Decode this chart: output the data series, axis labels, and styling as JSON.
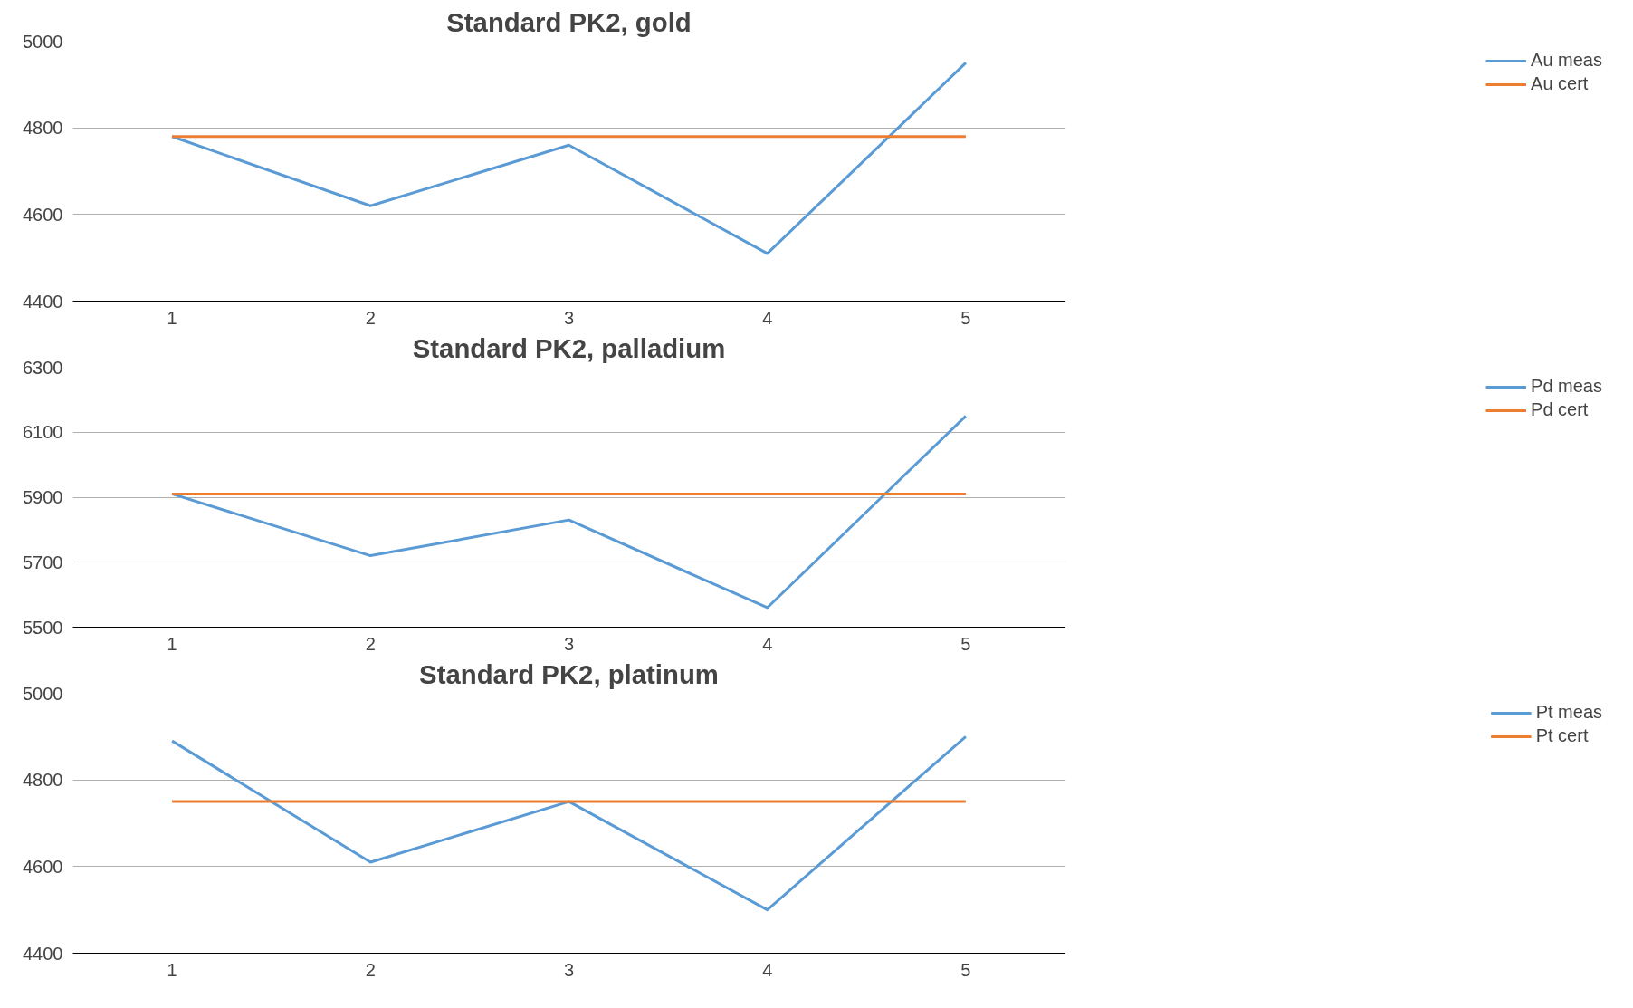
{
  "chart_data": [
    {
      "type": "line",
      "title": "Standard PK2, gold",
      "categories": [
        "1",
        "2",
        "3",
        "4",
        "5"
      ],
      "series": [
        {
          "name": "Au meas",
          "color": "#5b9bd5",
          "values": [
            4780,
            4620,
            4760,
            4510,
            4950
          ]
        },
        {
          "name": "Au cert",
          "color": "#ed7d31",
          "values": [
            4780,
            4780,
            4780,
            4780,
            4780
          ]
        }
      ],
      "ylim": [
        4400,
        5000
      ],
      "yticks": [
        4400,
        4600,
        4800,
        5000
      ],
      "grid": "y",
      "legend": "right"
    },
    {
      "type": "line",
      "title": "Standard PK2, palladium",
      "categories": [
        "1",
        "2",
        "3",
        "4",
        "5"
      ],
      "series": [
        {
          "name": "Pd meas",
          "color": "#5b9bd5",
          "values": [
            5910,
            5720,
            5830,
            5560,
            6150
          ]
        },
        {
          "name": "Pd cert",
          "color": "#ed7d31",
          "values": [
            5910,
            5910,
            5910,
            5910,
            5910
          ]
        }
      ],
      "ylim": [
        5500,
        6300
      ],
      "yticks": [
        5500,
        5700,
        5900,
        6100,
        6300
      ],
      "grid": "y",
      "legend": "right"
    },
    {
      "type": "line",
      "title": "Standard PK2, platinum",
      "categories": [
        "1",
        "2",
        "3",
        "4",
        "5"
      ],
      "series": [
        {
          "name": "Pt meas",
          "color": "#5b9bd5",
          "values": [
            4890,
            4610,
            4750,
            4500,
            4900
          ]
        },
        {
          "name": "Pt cert",
          "color": "#ed7d31",
          "values": [
            4750,
            4750,
            4750,
            4750,
            4750
          ]
        }
      ],
      "ylim": [
        4400,
        5000
      ],
      "yticks": [
        4400,
        4600,
        4800,
        5000
      ],
      "grid": "y",
      "legend": "right"
    }
  ]
}
